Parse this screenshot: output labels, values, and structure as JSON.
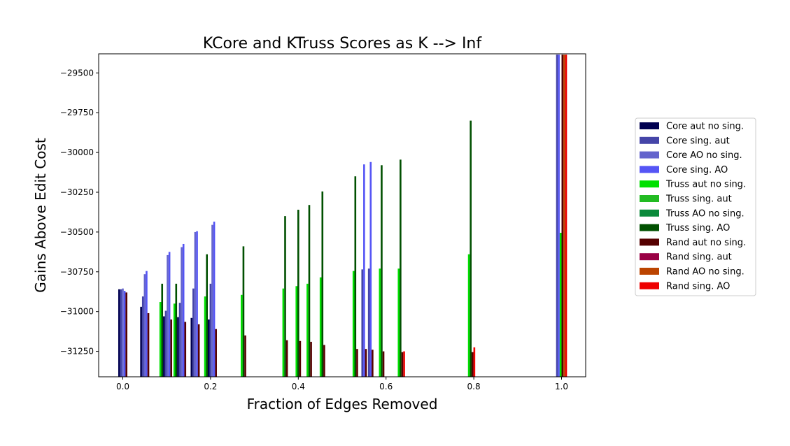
{
  "chart_data": {
    "type": "bar",
    "title": "KCore and KTruss Scores as K --> Inf",
    "xlabel": "Fraction of Edges Removed",
    "ylabel": "Gains Above Edit Cost",
    "xlim": [
      -0.055,
      1.055
    ],
    "ylim": [
      -31410,
      -29380
    ],
    "xticks": [
      0.0,
      0.2,
      0.4,
      0.6,
      0.8,
      1.0
    ],
    "xtick_labels": [
      "0.0",
      "0.2",
      "0.4",
      "0.6",
      "0.8",
      "1.0"
    ],
    "yticks": [
      -29500,
      -29750,
      -30000,
      -30250,
      -30500,
      -30750,
      -31000,
      -31250
    ],
    "ytick_labels": [
      "−29500",
      "−29750",
      "−30000",
      "−30250",
      "−30500",
      "−30750",
      "−31000",
      "−31250"
    ],
    "grid": false,
    "legend_position": "right",
    "series": [
      {
        "name": "Core aut no sing.",
        "color": "#000050"
      },
      {
        "name": "Core sing. aut",
        "color": "#4545a8"
      },
      {
        "name": "Core AO no sing.",
        "color": "#6464cc"
      },
      {
        "name": "Core sing. AO",
        "color": "#5555f5"
      },
      {
        "name": "Truss aut no sing.",
        "color": "#00e000"
      },
      {
        "name": "Truss sing. aut",
        "color": "#22bb22"
      },
      {
        "name": "Truss AO no sing.",
        "color": "#0a8a3a"
      },
      {
        "name": "Truss sing. AO",
        "color": "#005000"
      },
      {
        "name": "Rand aut no sing.",
        "color": "#550000"
      },
      {
        "name": "Rand sing. aut",
        "color": "#990044"
      },
      {
        "name": "Rand AO no sing.",
        "color": "#bb4400"
      },
      {
        "name": "Rand sing. AO",
        "color": "#ee0000"
      }
    ],
    "bar_groups": [
      {
        "x": 0.0,
        "bars": [
          {
            "series": 0,
            "y": -30860
          },
          {
            "series": 1,
            "y": -30860
          },
          {
            "series": 2,
            "y": -30855
          },
          {
            "series": 3,
            "y": -30870
          },
          {
            "series": 8,
            "y": -30880
          }
        ]
      },
      {
        "x": 0.05,
        "bars": [
          {
            "series": 0,
            "y": -30970
          },
          {
            "series": 1,
            "y": -30905
          },
          {
            "series": 2,
            "y": -30765
          },
          {
            "series": 3,
            "y": -30745
          },
          {
            "series": 8,
            "y": -31010
          }
        ]
      },
      {
        "x": 0.098,
        "bars": [
          {
            "series": 4,
            "y": -30940
          },
          {
            "series": 7,
            "y": -30825
          },
          {
            "series": 0,
            "y": -31030
          },
          {
            "series": 1,
            "y": -30995
          },
          {
            "series": 2,
            "y": -30645
          },
          {
            "series": 3,
            "y": -30625
          },
          {
            "series": 8,
            "y": -31050
          }
        ]
      },
      {
        "x": 0.13,
        "bars": [
          {
            "series": 4,
            "y": -30950
          },
          {
            "series": 7,
            "y": -30825
          },
          {
            "series": 0,
            "y": -31035
          },
          {
            "series": 1,
            "y": -30945
          },
          {
            "series": 2,
            "y": -30595
          },
          {
            "series": 3,
            "y": -30575
          },
          {
            "series": 8,
            "y": -31065
          }
        ]
      },
      {
        "x": 0.165,
        "bars": [
          {
            "series": 0,
            "y": -31040
          },
          {
            "series": 1,
            "y": -30855
          },
          {
            "series": 2,
            "y": -30500
          },
          {
            "series": 3,
            "y": -30495
          },
          {
            "series": 8,
            "y": -31080
          }
        ]
      },
      {
        "x": 0.2,
        "bars": [
          {
            "series": 4,
            "y": -30905
          },
          {
            "series": 7,
            "y": -30640
          },
          {
            "series": 0,
            "y": -31050
          },
          {
            "series": 1,
            "y": -30825
          },
          {
            "series": 2,
            "y": -30455
          },
          {
            "series": 3,
            "y": -30435
          },
          {
            "series": 8,
            "y": -31110
          }
        ]
      },
      {
        "x": 0.275,
        "bars": [
          {
            "series": 4,
            "y": -30895
          },
          {
            "series": 7,
            "y": -30590
          },
          {
            "series": 8,
            "y": -31150
          }
        ]
      },
      {
        "x": 0.37,
        "bars": [
          {
            "series": 4,
            "y": -30855
          },
          {
            "series": 7,
            "y": -30400
          },
          {
            "series": 8,
            "y": -31180
          }
        ]
      },
      {
        "x": 0.4,
        "bars": [
          {
            "series": 4,
            "y": -30840
          },
          {
            "series": 7,
            "y": -30360
          },
          {
            "series": 8,
            "y": -31185
          }
        ]
      },
      {
        "x": 0.425,
        "bars": [
          {
            "series": 4,
            "y": -30825
          },
          {
            "series": 7,
            "y": -30330
          },
          {
            "series": 8,
            "y": -31190
          }
        ]
      },
      {
        "x": 0.455,
        "bars": [
          {
            "series": 4,
            "y": -30785
          },
          {
            "series": 7,
            "y": -30245
          },
          {
            "series": 8,
            "y": -31210
          }
        ]
      },
      {
        "x": 0.53,
        "bars": [
          {
            "series": 4,
            "y": -30745
          },
          {
            "series": 7,
            "y": -30150
          },
          {
            "series": 8,
            "y": -31235
          }
        ]
      },
      {
        "x": 0.55,
        "bars": [
          {
            "series": 1,
            "y": -30735
          },
          {
            "series": 3,
            "y": -30075
          },
          {
            "series": 8,
            "y": -31235
          }
        ]
      },
      {
        "x": 0.565,
        "bars": [
          {
            "series": 1,
            "y": -30730
          },
          {
            "series": 3,
            "y": -30060
          },
          {
            "series": 8,
            "y": -31240
          }
        ]
      },
      {
        "x": 0.59,
        "bars": [
          {
            "series": 4,
            "y": -30730
          },
          {
            "series": 7,
            "y": -30080
          },
          {
            "series": 8,
            "y": -31250
          }
        ]
      },
      {
        "x": 0.635,
        "bars": [
          {
            "series": 4,
            "y": -30730
          },
          {
            "series": 7,
            "y": -30045
          },
          {
            "series": 8,
            "y": -31255
          },
          {
            "series": 11,
            "y": -31250
          }
        ]
      },
      {
        "x": 0.795,
        "bars": [
          {
            "series": 4,
            "y": -30640
          },
          {
            "series": 7,
            "y": -29800
          },
          {
            "series": 8,
            "y": -31255
          },
          {
            "series": 11,
            "y": -31225
          }
        ]
      },
      {
        "x": 1.0,
        "bars": [
          {
            "series": 1,
            "y": -29385
          },
          {
            "series": 3,
            "y": -29385
          },
          {
            "series": 4,
            "y": -30505
          },
          {
            "series": 8,
            "y": -29385
          },
          {
            "series": 10,
            "y": -29385
          },
          {
            "series": 11,
            "y": -29385
          }
        ]
      }
    ]
  }
}
